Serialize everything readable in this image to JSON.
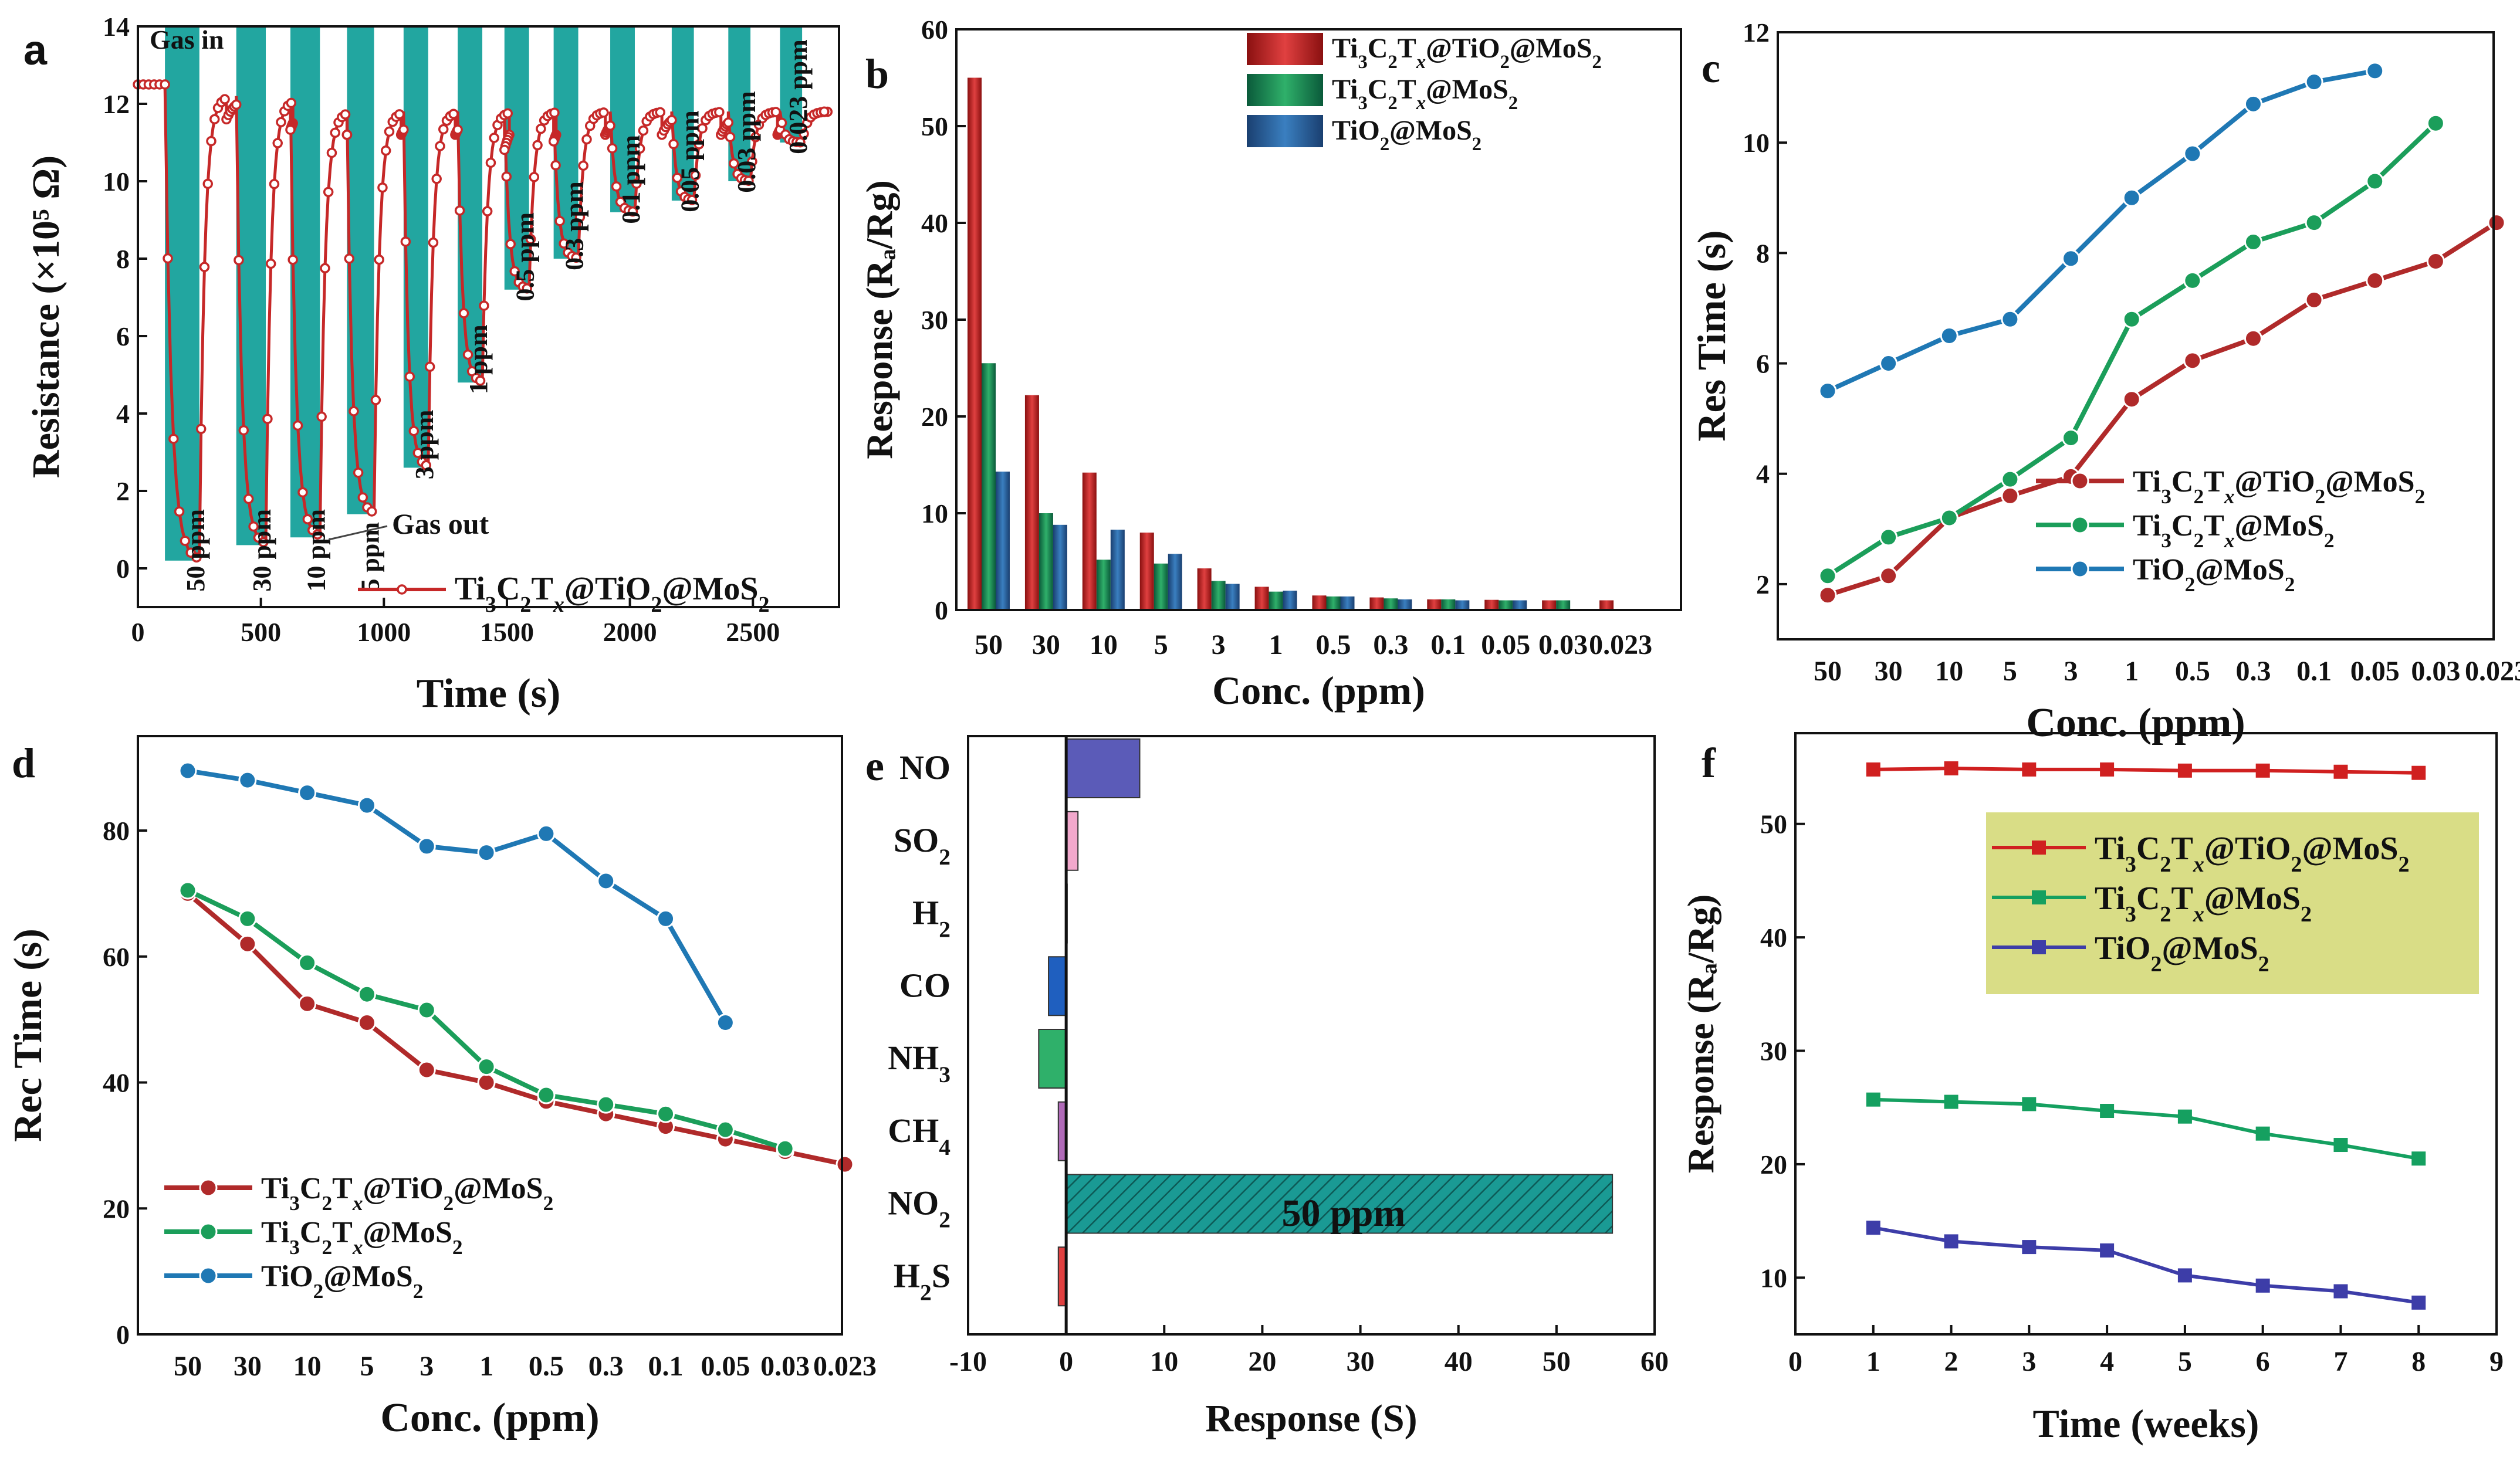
{
  "colors": {
    "red": "#c62828",
    "green": "#1b9e5a",
    "blue": "#1f78b4",
    "teal": "#22a6a0",
    "navy": "#3d3da8",
    "olive": "#8a8a2a",
    "legendFill": "#d9dd86"
  },
  "chart_data": [
    {
      "panel": "a",
      "type": "line",
      "title": "",
      "xlabel": "Time (s)",
      "ylabel": "Resistance (×10⁵ Ω)",
      "xlim": [
        0,
        2850
      ],
      "ylim": [
        -1,
        14
      ],
      "xticks": [
        "0",
        "500",
        "1000",
        "1500",
        "2000",
        "2500"
      ],
      "xtickvals": [
        0,
        500,
        1000,
        1500,
        2000,
        2500
      ],
      "yticks": [
        "0",
        "2",
        "4",
        "6",
        "8",
        "10",
        "12",
        "14"
      ],
      "ytickvals": [
        0,
        2,
        4,
        6,
        8,
        10,
        12,
        14
      ],
      "series_name": "Ti₃C₂Tₓ@TiO₂@MoS₂",
      "pulses": [
        {
          "label": "50 ppm",
          "start": 110,
          "end": 250,
          "top": 12.5,
          "min": 0.2
        },
        {
          "label": "30 ppm",
          "start": 400,
          "end": 520,
          "top": 12.2,
          "min": 0.6
        },
        {
          "label": "10 ppm",
          "start": 620,
          "end": 740,
          "top": 12.1,
          "min": 0.8
        },
        {
          "label": "5 ppm",
          "start": 850,
          "end": 960,
          "top": 11.8,
          "min": 1.4
        },
        {
          "label": "3 ppm",
          "start": 1080,
          "end": 1180,
          "top": 11.8,
          "min": 2.6
        },
        {
          "label": "1 ppm",
          "start": 1300,
          "end": 1400,
          "top": 11.8,
          "min": 4.8
        },
        {
          "label": "0.5 ppm",
          "start": 1490,
          "end": 1590,
          "top": 11.8,
          "min": 7.2
        },
        {
          "label": "0.3 ppm",
          "start": 1690,
          "end": 1790,
          "top": 11.8,
          "min": 8.0
        },
        {
          "label": "0.1 ppm",
          "start": 1920,
          "end": 2020,
          "top": 11.8,
          "min": 9.2
        },
        {
          "label": "0.05 ppm",
          "start": 2170,
          "end": 2260,
          "top": 11.8,
          "min": 9.5
        },
        {
          "label": "0.03 ppm",
          "start": 2400,
          "end": 2490,
          "top": 11.8,
          "min": 10.0
        },
        {
          "label": "0.023 ppm",
          "start": 2610,
          "end": 2700,
          "top": 11.8,
          "min": 11.0
        }
      ],
      "annotations": [
        "Gas in",
        "Gas out"
      ]
    },
    {
      "panel": "b",
      "type": "bar",
      "xlabel": "Conc. (ppm)",
      "ylabel": "Response (Ra/Rg)",
      "ylim": [
        0,
        60
      ],
      "yticks": [
        "0",
        "10",
        "20",
        "30",
        "40",
        "50",
        "60"
      ],
      "ytickvals": [
        0,
        10,
        20,
        30,
        40,
        50,
        60
      ],
      "categories": [
        "50",
        "30",
        "10",
        "5",
        "3",
        "1",
        "0.5",
        "0.3",
        "0.1",
        "0.05",
        "0.03",
        "0.023"
      ],
      "series": [
        {
          "name": "Ti₃C₂Tₓ@TiO₂@MoS₂",
          "values": [
            55,
            22.2,
            14.2,
            8.0,
            4.3,
            2.4,
            1.5,
            1.3,
            1.1,
            1.05,
            1.0,
            1.0
          ]
        },
        {
          "name": "Ti₃C₂Tₓ@MoS₂",
          "values": [
            25.5,
            10.0,
            5.2,
            4.8,
            3.0,
            1.9,
            1.4,
            1.2,
            1.1,
            1.0,
            1.0,
            null
          ]
        },
        {
          "name": "TiO₂@MoS₂",
          "values": [
            14.3,
            8.8,
            8.3,
            5.8,
            2.7,
            2.0,
            1.4,
            1.1,
            1.0,
            1.0,
            null,
            null
          ]
        }
      ]
    },
    {
      "panel": "c",
      "type": "line",
      "xlabel": "Conc. (ppm)",
      "ylabel": "Res Time (s)",
      "ylim": [
        1,
        12
      ],
      "yticks": [
        "2",
        "4",
        "6",
        "8",
        "10",
        "12"
      ],
      "ytickvals": [
        2,
        4,
        6,
        8,
        10,
        12
      ],
      "categories": [
        "50",
        "30",
        "10",
        "5",
        "3",
        "1",
        "0.5",
        "0.3",
        "0.1",
        "0.05",
        "0.03",
        "0.023"
      ],
      "series": [
        {
          "name": "Ti₃C₂Tₓ@TiO₂@MoS₂",
          "values": [
            1.8,
            2.15,
            3.2,
            3.6,
            3.95,
            5.35,
            6.05,
            6.45,
            7.15,
            7.5,
            7.85,
            8.55
          ]
        },
        {
          "name": "Ti₃C₂Tₓ@MoS₂",
          "values": [
            2.15,
            2.85,
            3.2,
            3.9,
            4.65,
            6.8,
            7.5,
            8.2,
            8.55,
            9.3,
            10.35,
            null
          ]
        },
        {
          "name": "TiO₂@MoS₂",
          "values": [
            5.5,
            6.0,
            6.5,
            6.8,
            7.9,
            9.0,
            9.8,
            10.7,
            11.1,
            11.3,
            null,
            null
          ]
        }
      ]
    },
    {
      "panel": "d",
      "type": "line",
      "xlabel": "Conc. (ppm)",
      "ylabel": "Rec Time (s)",
      "ylim": [
        0,
        95
      ],
      "yticks": [
        "0",
        "20",
        "40",
        "60",
        "80"
      ],
      "ytickvals": [
        0,
        20,
        40,
        60,
        80
      ],
      "categories": [
        "50",
        "30",
        "10",
        "5",
        "3",
        "1",
        "0.5",
        "0.3",
        "0.1",
        "0.05",
        "0.03",
        "0.023"
      ],
      "series": [
        {
          "name": "Ti₃C₂Tₓ@TiO₂@MoS₂",
          "values": [
            70,
            62,
            52.5,
            49.5,
            42,
            40,
            37,
            35,
            33,
            31,
            29,
            27
          ]
        },
        {
          "name": "Ti₃C₂Tₓ@MoS₂",
          "values": [
            70.5,
            66,
            59,
            54,
            51.5,
            42.5,
            38,
            36.5,
            35,
            32.5,
            29.5,
            null
          ]
        },
        {
          "name": "TiO₂@MoS₂",
          "values": [
            89.5,
            88,
            86,
            84,
            77.5,
            76.5,
            79.5,
            72,
            66,
            49.5,
            null,
            null
          ]
        }
      ]
    },
    {
      "panel": "e",
      "type": "bar",
      "orientation": "horizontal",
      "xlabel": "Response (S)",
      "xlim": [
        -10,
        60
      ],
      "xticks": [
        "-10",
        "0",
        "10",
        "20",
        "30",
        "40",
        "50",
        "60"
      ],
      "xtickvals": [
        -10,
        0,
        10,
        20,
        30,
        40,
        50,
        60
      ],
      "categories": [
        "NO",
        "SO₂",
        "H₂",
        "CO",
        "NH₃",
        "CH₄",
        "NO₂",
        "H₂S"
      ],
      "values": [
        7.5,
        1.2,
        0.1,
        -1.8,
        -2.8,
        -0.8,
        55.7,
        -0.8
      ],
      "colors": [
        "#5b5bb8",
        "#f2a8cc",
        "#ffffff",
        "#1f5fbf",
        "#2fb06a",
        "#b06ab8",
        "#1a9a94",
        "#e04040"
      ],
      "annotation": "50 ppm"
    },
    {
      "panel": "f",
      "type": "line",
      "xlabel": "Time (weeks)",
      "ylabel": "Response (Ra/Rg)",
      "xlim": [
        0,
        9
      ],
      "ylim": [
        5,
        58
      ],
      "xticks": [
        "0",
        "1",
        "2",
        "3",
        "4",
        "5",
        "6",
        "7",
        "8",
        "9"
      ],
      "xtickvals": [
        0,
        1,
        2,
        3,
        4,
        5,
        6,
        7,
        8,
        9
      ],
      "yticks": [
        "10",
        "20",
        "30",
        "40",
        "50"
      ],
      "ytickvals": [
        10,
        20,
        30,
        40,
        50
      ],
      "x": [
        1,
        2,
        3,
        4,
        5,
        6,
        7,
        8
      ],
      "series": [
        {
          "name": "Ti₃C₂Tₓ@TiO₂@MoS₂",
          "values": [
            54.8,
            54.9,
            54.8,
            54.8,
            54.7,
            54.7,
            54.6,
            54.5
          ]
        },
        {
          "name": "Ti₃C₂Tₓ@MoS₂",
          "values": [
            25.7,
            25.5,
            25.3,
            24.7,
            24.2,
            22.7,
            21.7,
            20.5
          ]
        },
        {
          "name": "TiO₂@MoS₂",
          "values": [
            14.4,
            13.2,
            12.7,
            12.4,
            10.2,
            9.3,
            8.8,
            7.8
          ]
        }
      ]
    }
  ]
}
